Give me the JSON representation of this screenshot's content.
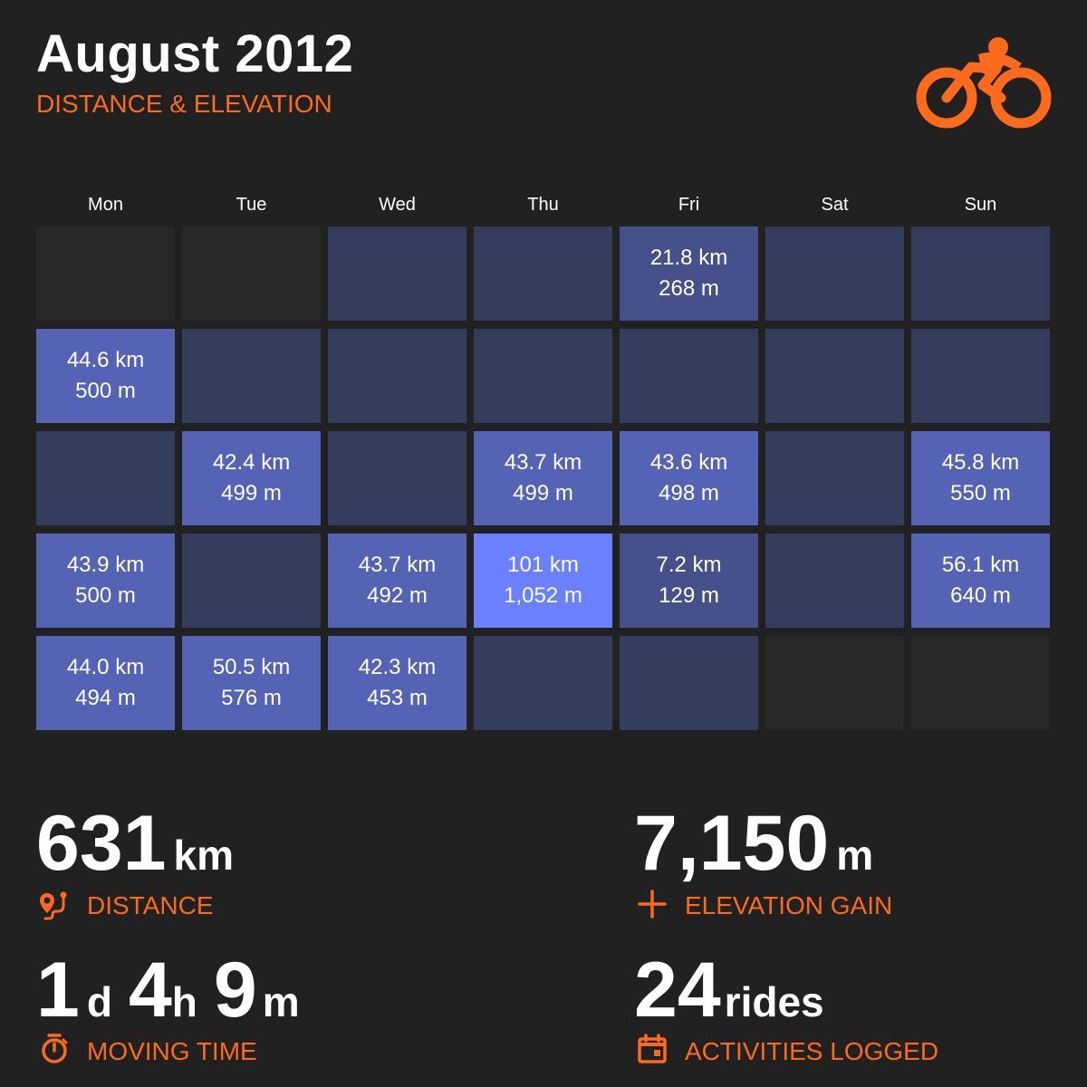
{
  "header": {
    "title": "August 2012",
    "subtitle": "DISTANCE & ELEVATION",
    "logo_icon": "cyclist-icon"
  },
  "colors": {
    "background": "#212121",
    "accent": "#fc6b1c",
    "cell_empty": "#282828",
    "cell_no_ride": "#353d5e",
    "cell_low": "#46508a",
    "cell_mid": "#5563b4",
    "cell_high": "#6a80ff"
  },
  "calendar": {
    "weekdays": [
      "Mon",
      "Tue",
      "Wed",
      "Thu",
      "Fri",
      "Sat",
      "Sun"
    ],
    "weeks": [
      [
        {
          "kind": "empty"
        },
        {
          "kind": "empty"
        },
        {
          "kind": "none"
        },
        {
          "kind": "none"
        },
        {
          "kind": "ride",
          "distance": "21.8 km",
          "elevation": "268 m",
          "km": 21.8
        },
        {
          "kind": "none"
        },
        {
          "kind": "none"
        }
      ],
      [
        {
          "kind": "ride",
          "distance": "44.6 km",
          "elevation": "500 m",
          "km": 44.6
        },
        {
          "kind": "none"
        },
        {
          "kind": "none"
        },
        {
          "kind": "none"
        },
        {
          "kind": "none"
        },
        {
          "kind": "none"
        },
        {
          "kind": "none"
        }
      ],
      [
        {
          "kind": "none"
        },
        {
          "kind": "ride",
          "distance": "42.4 km",
          "elevation": "499 m",
          "km": 42.4
        },
        {
          "kind": "none"
        },
        {
          "kind": "ride",
          "distance": "43.7 km",
          "elevation": "499 m",
          "km": 43.7
        },
        {
          "kind": "ride",
          "distance": "43.6 km",
          "elevation": "498 m",
          "km": 43.6
        },
        {
          "kind": "none"
        },
        {
          "kind": "ride",
          "distance": "45.8 km",
          "elevation": "550 m",
          "km": 45.8
        }
      ],
      [
        {
          "kind": "ride",
          "distance": "43.9 km",
          "elevation": "500 m",
          "km": 43.9
        },
        {
          "kind": "none"
        },
        {
          "kind": "ride",
          "distance": "43.7 km",
          "elevation": "492 m",
          "km": 43.7
        },
        {
          "kind": "ride",
          "distance": "101 km",
          "elevation": "1,052 m",
          "km": 101
        },
        {
          "kind": "ride",
          "distance": "7.2 km",
          "elevation": "129 m",
          "km": 7.2
        },
        {
          "kind": "none"
        },
        {
          "kind": "ride",
          "distance": "56.1 km",
          "elevation": "640 m",
          "km": 56.1
        }
      ],
      [
        {
          "kind": "ride",
          "distance": "44.0 km",
          "elevation": "494 m",
          "km": 44.0
        },
        {
          "kind": "ride",
          "distance": "50.5 km",
          "elevation": "576 m",
          "km": 50.5
        },
        {
          "kind": "ride",
          "distance": "42.3 km",
          "elevation": "453 m",
          "km": 42.3
        },
        {
          "kind": "none"
        },
        {
          "kind": "none"
        },
        {
          "kind": "empty"
        },
        {
          "kind": "empty"
        }
      ]
    ]
  },
  "stats": {
    "distance": {
      "value": "631",
      "unit": "km",
      "label": "DISTANCE",
      "icon": "route-icon"
    },
    "elevation": {
      "value": "7,150",
      "unit": "m",
      "label": "ELEVATION GAIN",
      "icon": "plus-icon"
    },
    "moving_time": {
      "days": "1",
      "days_unit": "d",
      "hours": "4",
      "hours_unit": "h",
      "minutes": "9",
      "minutes_unit": "m",
      "label": "MOVING TIME",
      "icon": "stopwatch-icon"
    },
    "activities": {
      "value": "24",
      "unit": "rides",
      "label": "ACTIVITIES LOGGED",
      "icon": "calendar-icon"
    }
  }
}
